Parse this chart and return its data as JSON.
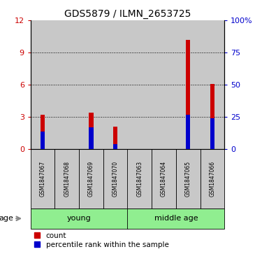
{
  "title": "GDS5879 / ILMN_2653725",
  "samples": [
    "GSM1847067",
    "GSM1847068",
    "GSM1847069",
    "GSM1847070",
    "GSM1847063",
    "GSM1847064",
    "GSM1847065",
    "GSM1847066"
  ],
  "count_values": [
    3.2,
    0.0,
    3.4,
    2.1,
    0.0,
    0.0,
    10.2,
    6.1
  ],
  "percentile_values": [
    14.0,
    0.0,
    17.0,
    4.0,
    0.0,
    0.0,
    27.0,
    24.0
  ],
  "left_ylim": [
    0,
    12
  ],
  "right_ylim": [
    0,
    100
  ],
  "left_yticks": [
    0,
    3,
    6,
    9,
    12
  ],
  "right_yticks": [
    0,
    25,
    50,
    75,
    100
  ],
  "groups": [
    {
      "label": "young",
      "start": 0,
      "end": 4
    },
    {
      "label": "middle age",
      "start": 4,
      "end": 8
    }
  ],
  "group_color": "#90EE90",
  "bar_bg_color": "#C8C8C8",
  "red_color": "#CC0000",
  "blue_color": "#0000CC",
  "age_label": "age",
  "legend_items": [
    "count",
    "percentile rank within the sample"
  ],
  "grid_ticks": [
    3,
    6,
    9
  ]
}
